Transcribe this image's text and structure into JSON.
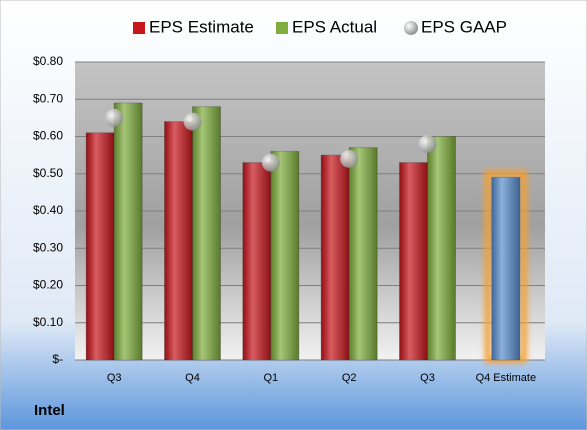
{
  "chart_data": {
    "type": "bar",
    "title": "Intel",
    "categories": [
      "Q3",
      "Q4",
      "Q1",
      "Q2",
      "Q3",
      "Q4 Estimate"
    ],
    "series": [
      {
        "name": "EPS Estimate",
        "color": "#c8161d",
        "values": [
          0.61,
          0.64,
          0.53,
          0.55,
          0.53,
          0.49
        ],
        "point_colors": [
          "#c8161d",
          "#c8161d",
          "#c8161d",
          "#c8161d",
          "#c8161d",
          "#5b8fd0"
        ]
      },
      {
        "name": "EPS Actual",
        "color": "#7fae3c",
        "values": [
          0.69,
          0.68,
          0.56,
          0.57,
          0.6,
          null
        ]
      },
      {
        "name": "EPS GAAP",
        "color": "#a0a0a0",
        "type": "scatter",
        "values": [
          0.65,
          0.64,
          0.53,
          0.54,
          0.58,
          null
        ]
      }
    ],
    "ylim": [
      0,
      0.8
    ],
    "yticks": [
      {
        "value": 0,
        "label": "$-"
      },
      {
        "value": 0.1,
        "label": "$0.10"
      },
      {
        "value": 0.2,
        "label": "$0.20"
      },
      {
        "value": 0.3,
        "label": "$0.30"
      },
      {
        "value": 0.4,
        "label": "$0.40"
      },
      {
        "value": 0.5,
        "label": "$0.50"
      },
      {
        "value": 0.6,
        "label": "$0.60"
      },
      {
        "value": 0.7,
        "label": "$0.70"
      },
      {
        "value": 0.8,
        "label": "$0.80"
      }
    ],
    "grid": true,
    "legend": "top"
  }
}
